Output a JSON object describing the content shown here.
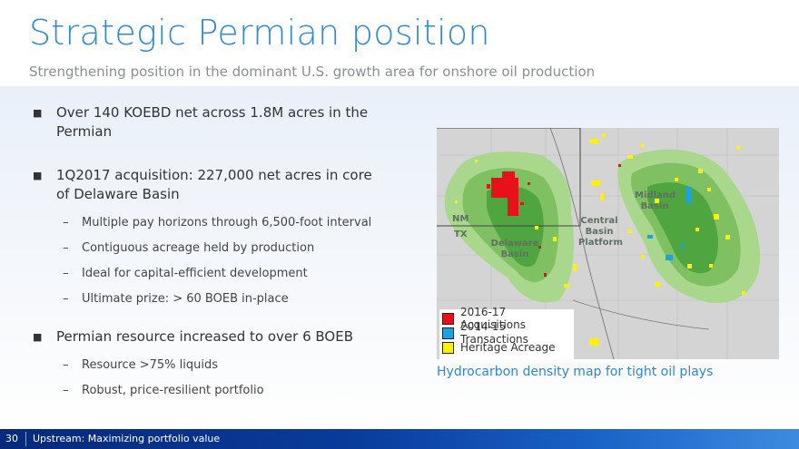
{
  "header": {
    "title": "Strategic Permian position",
    "subtitle": "Strengthening position in the dominant U.S. growth area for onshore oil production"
  },
  "bullets": [
    {
      "text": "Over 140 KOEBD net across 1.8M acres in the Permian",
      "subs": []
    },
    {
      "text": "1Q2017 acquisition:  227,000 net acres in core of Delaware Basin",
      "subs": [
        "Multiple pay horizons through 6,500-foot interval",
        "Contiguous acreage held by production",
        "Ideal for capital-efficient development",
        "Ultimate prize: > 60 BOEB in-place"
      ]
    },
    {
      "text": "Permian resource increased to over 6 BOEB",
      "subs": [
        "Resource >75% liquids",
        "Robust, price-resilient portfolio"
      ]
    }
  ],
  "map": {
    "labels": {
      "nm": "NM",
      "tx": "TX",
      "delaware_basin": "Delaware Basin",
      "central_basin_platform": "Central Basin Platform",
      "midland_basin": "Midland Basin"
    },
    "legend": [
      {
        "label": "2016-17 Acquisitions",
        "color": "#e8101a"
      },
      {
        "label": "2014-15 Transactions",
        "color": "#1aa3e0"
      },
      {
        "label": "Heritage Acreage",
        "color": "#fff100"
      }
    ],
    "caption": "Hydrocarbon density map for tight oil plays"
  },
  "footer": {
    "page_number": "30",
    "text": "Upstream:  Maximizing portfolio value"
  }
}
